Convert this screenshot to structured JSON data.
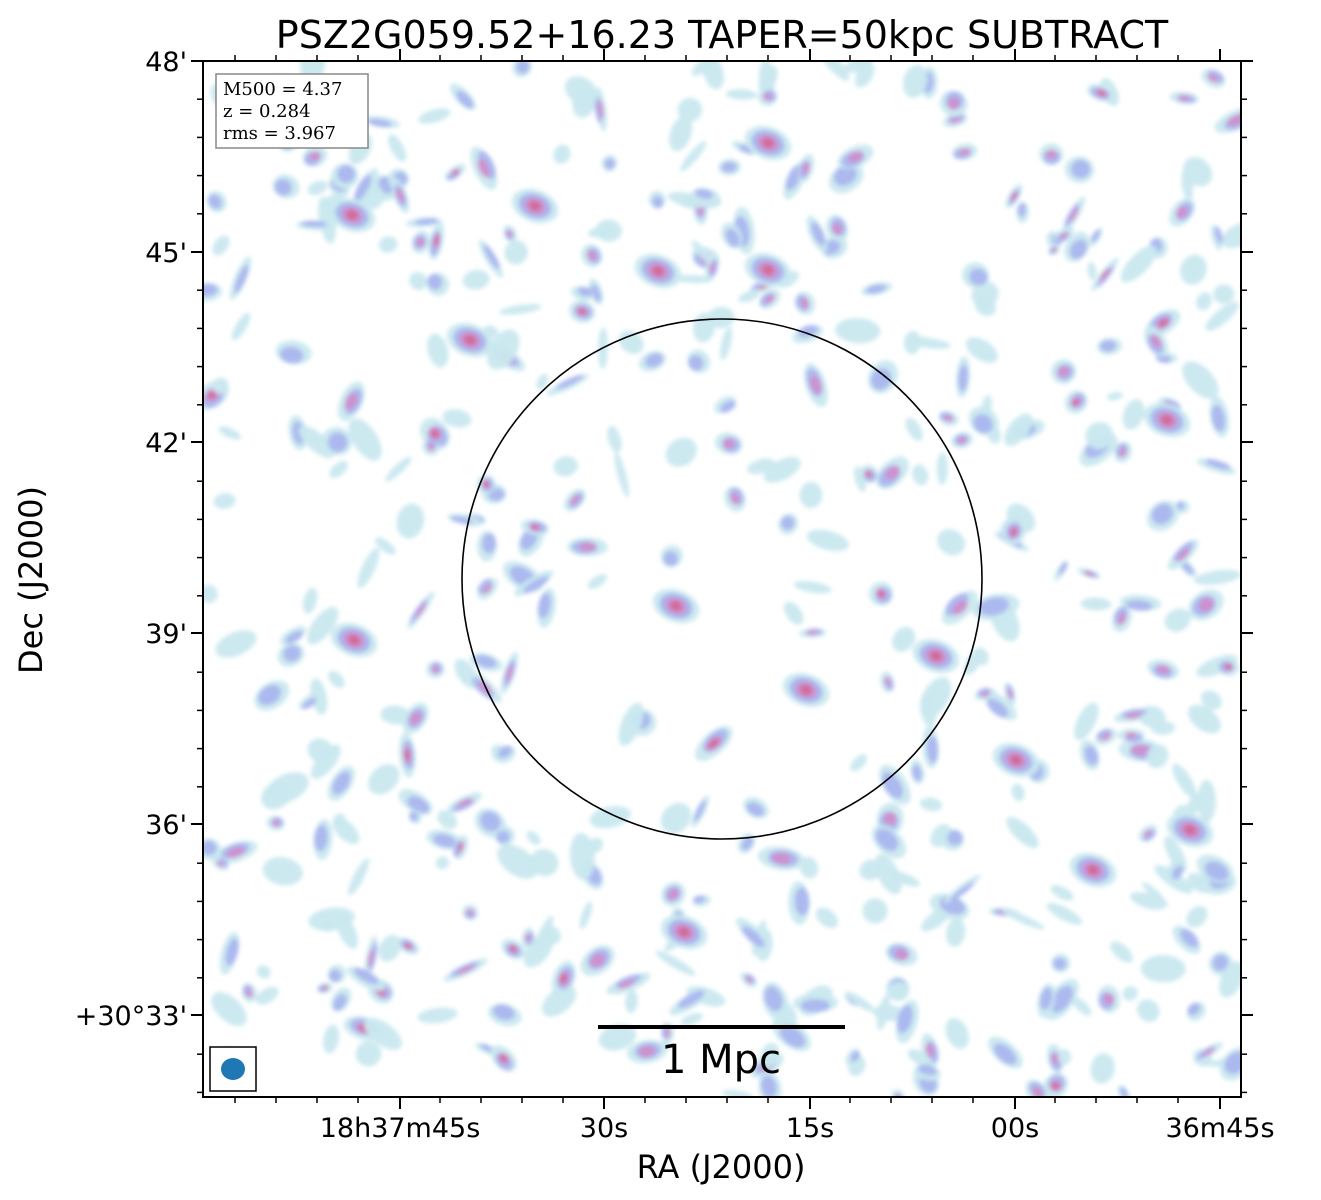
{
  "title": "PSZ2G059.52+16.23 TAPER=50kpc SUBTRACT",
  "info_box": {
    "m500": "M500 = 4.37",
    "z": "z = 0.284",
    "rms": "rms = 3.967"
  },
  "axes": {
    "xlabel": "RA (J2000)",
    "ylabel": "Dec (J2000)",
    "x_ticks": [
      "18h37m45s",
      "30s",
      "15s",
      "00s",
      "36m45s"
    ],
    "y_ticks": [
      "48'",
      "45'",
      "42'",
      "39'",
      "36'",
      "+30°33'"
    ]
  },
  "scalebar": {
    "label": "1 Mpc"
  },
  "colors": {
    "low": "#c9e8ef",
    "mid": "#a9b4ee",
    "high": "#cf8ecb",
    "peak": "#d06a96",
    "beam": "#1f77b4"
  }
}
